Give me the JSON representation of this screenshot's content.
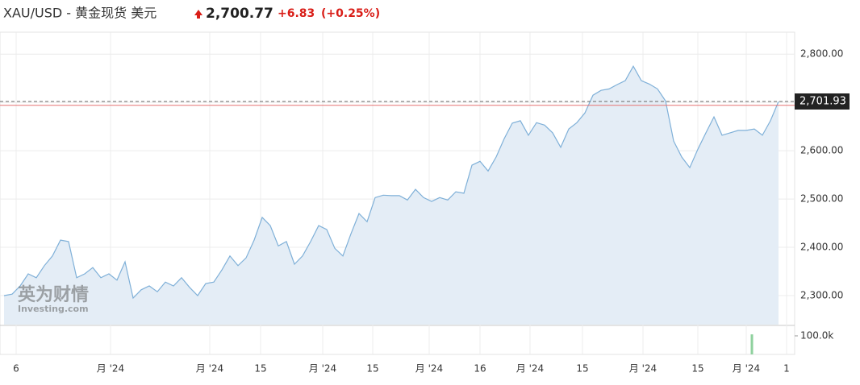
{
  "header": {
    "symbol": "XAU/USD - 黄金现货 美元",
    "price": "2,700.77",
    "change": "+6.83",
    "change_pct": "(+0.25%)"
  },
  "watermark": [
    "英为财情",
    "Investing.com"
  ],
  "chart_data": {
    "type": "area",
    "color": "#7fb0d8",
    "fill": "#e4edf6",
    "grid": true,
    "values": [
      2300,
      2303,
      2320,
      2345,
      2337,
      2362,
      2382,
      2415,
      2412,
      2337,
      2345,
      2358,
      2337,
      2345,
      2332,
      2370,
      2295,
      2312,
      2320,
      2308,
      2328,
      2320,
      2337,
      2317,
      2300,
      2325,
      2328,
      2353,
      2382,
      2362,
      2378,
      2415,
      2462,
      2445,
      2403,
      2412,
      2365,
      2382,
      2412,
      2445,
      2437,
      2398,
      2382,
      2428,
      2470,
      2453,
      2503,
      2508,
      2507,
      2507,
      2498,
      2520,
      2503,
      2495,
      2503,
      2498,
      2515,
      2512,
      2570,
      2578,
      2558,
      2587,
      2625,
      2657,
      2662,
      2632,
      2658,
      2653,
      2637,
      2607,
      2645,
      2658,
      2678,
      2715,
      2725,
      2728,
      2737,
      2745,
      2775,
      2745,
      2738,
      2728,
      2703,
      2620,
      2587,
      2565,
      2603,
      2637,
      2670,
      2632,
      2637,
      2642,
      2642,
      2645,
      2632,
      2662,
      2701.93
    ],
    "xlim": [
      0,
      98
    ],
    "xticks": [
      {
        "value": 1.5,
        "label": "6"
      },
      {
        "value": 13.2,
        "label": "月 '24"
      },
      {
        "value": 25.5,
        "label": "月 '24"
      },
      {
        "value": 31.8,
        "label": "15"
      },
      {
        "value": 39.5,
        "label": "月 '24"
      },
      {
        "value": 45.7,
        "label": "15"
      },
      {
        "value": 52.7,
        "label": "月 '24"
      },
      {
        "value": 59,
        "label": "16"
      },
      {
        "value": 65.2,
        "label": "月 '24"
      },
      {
        "value": 71.7,
        "label": "15"
      },
      {
        "value": 79.2,
        "label": "月 '24"
      },
      {
        "value": 86,
        "label": "15"
      },
      {
        "value": 92,
        "label": "月 '24"
      },
      {
        "value": 97,
        "label": "1"
      }
    ],
    "ylim": [
      2240,
      2837
    ],
    "yticks": [
      {
        "value": 2300,
        "label": "2,300.00"
      },
      {
        "value": 2400,
        "label": "2,400.00"
      },
      {
        "value": 2500,
        "label": "2,500.00"
      },
      {
        "value": 2600,
        "label": "2,600.00"
      },
      {
        "value": 2700,
        "label": "2,700.00"
      },
      {
        "value": 2800,
        "label": "2,800.00"
      }
    ],
    "price_line": {
      "value": 2701.93,
      "label": "2,701.93"
    },
    "reference_line": {
      "value": 2694,
      "color": "#e57373"
    },
    "volume": {
      "ylim": [
        0,
        152000
      ],
      "yticks": [
        {
          "value": 100000,
          "label": "100.0k"
        }
      ],
      "color": "#8fd19e",
      "x": [
        92.7
      ],
      "values": [
        108000
      ]
    }
  }
}
